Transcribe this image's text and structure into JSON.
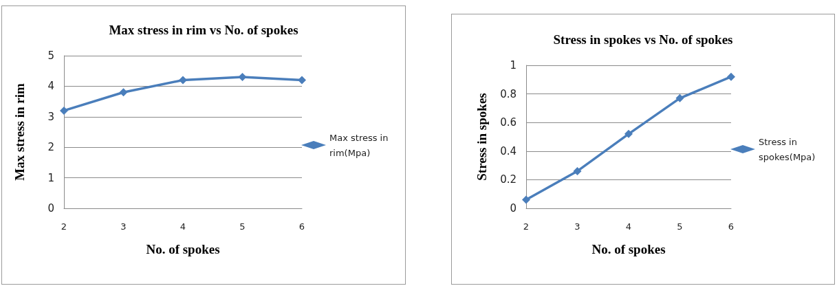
{
  "chart_data": [
    {
      "type": "line",
      "title": "Max stress in rim vs No. of spokes",
      "xlabel": "No. of spokes",
      "ylabel": "Max stress in rim",
      "categories": [
        "2",
        "3",
        "4",
        "5",
        "6"
      ],
      "series": [
        {
          "name": "Max stress in rim(Mpa)",
          "color": "#4a7ebb",
          "values": [
            3.2,
            3.8,
            4.2,
            4.3,
            4.2
          ]
        }
      ],
      "ylim": [
        0,
        5
      ],
      "yticks": [
        0,
        1,
        2,
        3,
        4,
        5
      ],
      "grid": "y",
      "legend": "right",
      "marker": "diamond"
    },
    {
      "type": "line",
      "title": "Stress in spokes vs No. of spokes",
      "xlabel": "No. of spokes",
      "ylabel": "Stress in spokes",
      "categories": [
        "2",
        "3",
        "4",
        "5",
        "6"
      ],
      "series": [
        {
          "name": "Stress in spokes(Mpa)",
          "color": "#4a7ebb",
          "values": [
            0.06,
            0.26,
            0.52,
            0.77,
            0.92
          ]
        }
      ],
      "ylim": [
        0,
        1
      ],
      "yticks": [
        0,
        0.2,
        0.4,
        0.6,
        0.8,
        1
      ],
      "grid": "y",
      "legend": "right",
      "marker": "diamond"
    }
  ]
}
